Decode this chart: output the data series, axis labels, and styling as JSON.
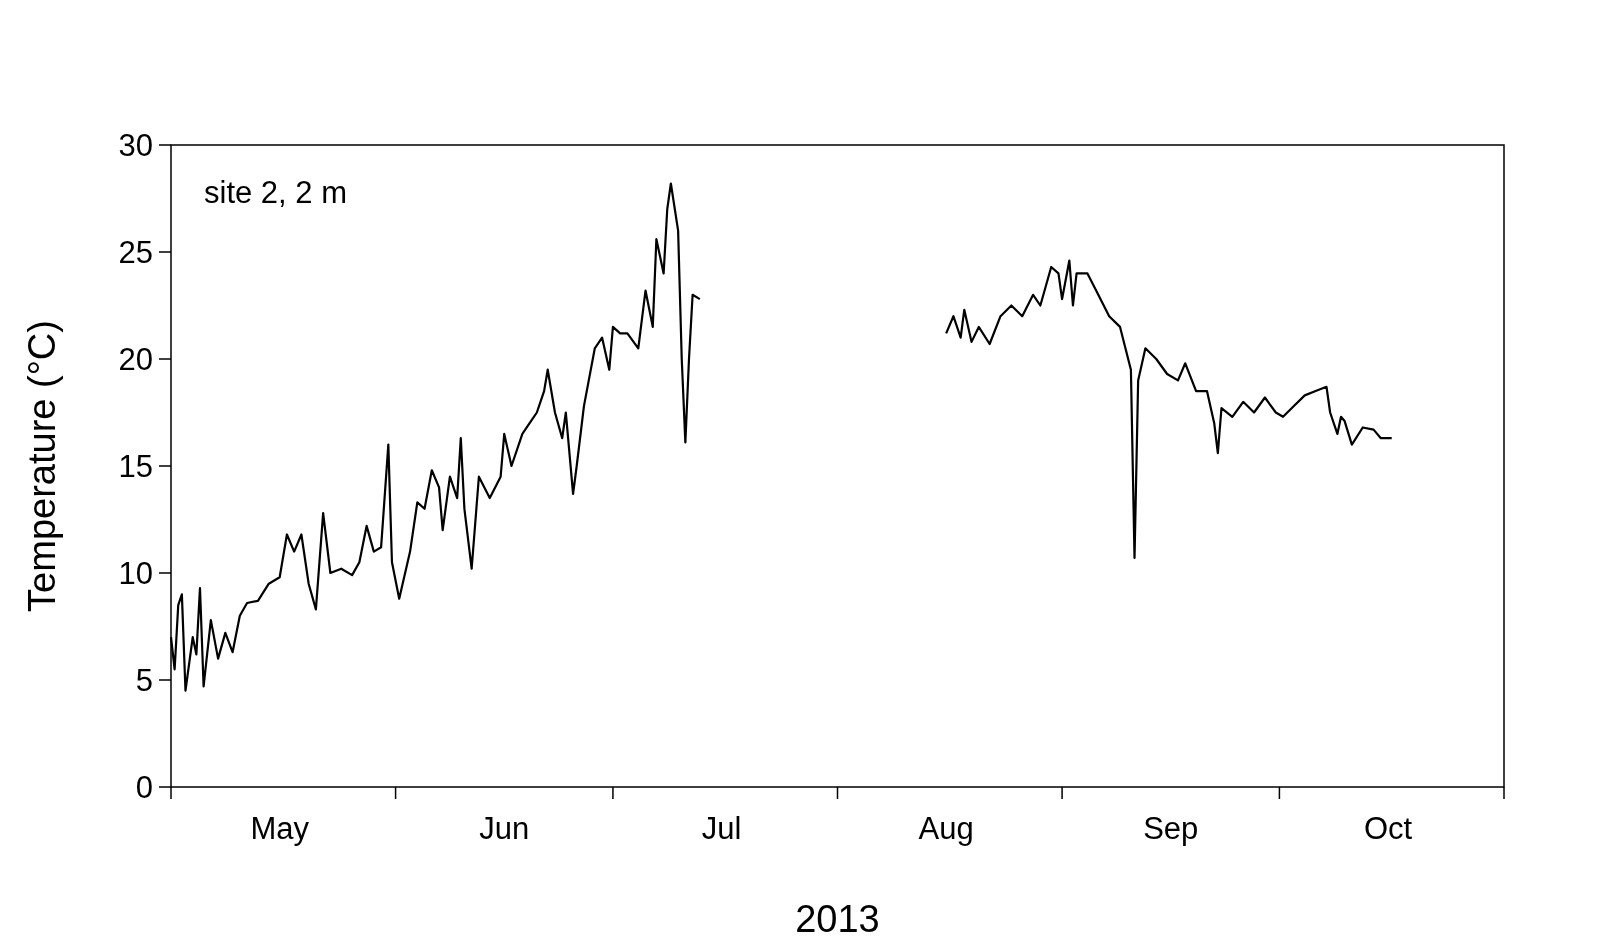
{
  "chart_data": {
    "type": "line",
    "xlabel": "2013",
    "ylabel": "Temperature (°C)",
    "annotations": [
      "site 2, 2 m"
    ],
    "x": [
      "2013-05-01T00:00",
      "2013-05-01T12:00",
      "2013-05-02T00:00",
      "2013-05-02T12:00",
      "2013-05-03T00:00",
      "2013-05-04T00:00",
      "2013-05-04T12:00",
      "2013-05-05T00:00",
      "2013-05-05T12:00",
      "2013-05-06T12:00",
      "2013-05-07T12:00",
      "2013-05-08T12:00",
      "2013-05-09T12:00",
      "2013-05-10T12:00",
      "2013-05-11T12:00",
      "2013-05-13T00:00",
      "2013-05-14T12:00",
      "2013-05-16T00:00",
      "2013-05-17T00:00",
      "2013-05-18T00:00",
      "2013-05-19T00:00",
      "2013-05-20T00:00",
      "2013-05-21T00:00",
      "2013-05-22T00:00",
      "2013-05-23T00:00",
      "2013-05-24T12:00",
      "2013-05-26T00:00",
      "2013-05-27T00:00",
      "2013-05-28T00:00",
      "2013-05-29T00:00",
      "2013-05-30T00:00",
      "2013-05-31T00:00",
      "2013-05-31T12:00",
      "2013-06-01T12:00",
      "2013-06-03T00:00",
      "2013-06-04T00:00",
      "2013-06-05T00:00",
      "2013-06-06T00:00",
      "2013-06-07T00:00",
      "2013-06-07T12:00",
      "2013-06-08T12:00",
      "2013-06-09T12:00",
      "2013-06-10T00:00",
      "2013-06-10T12:00",
      "2013-06-11T12:00",
      "2013-06-12T12:00",
      "2013-06-14T00:00",
      "2013-06-15T12:00",
      "2013-06-16T00:00",
      "2013-06-17T00:00",
      "2013-06-18T12:00",
      "2013-06-19T12:00",
      "2013-06-20T12:00",
      "2013-06-21T12:00",
      "2013-06-22T00:00",
      "2013-06-23T00:00",
      "2013-06-24T00:00",
      "2013-06-24T12:00",
      "2013-06-25T12:00",
      "2013-06-26T00:00",
      "2013-06-27T00:00",
      "2013-06-28T12:00",
      "2013-06-29T12:00",
      "2013-06-30T12:00",
      "2013-07-01T00:00",
      "2013-07-02T00:00",
      "2013-07-03T00:00",
      "2013-07-04T12:00",
      "2013-07-05T12:00",
      "2013-07-06T12:00",
      "2013-07-07T00:00",
      "2013-07-08T00:00",
      "2013-07-08T12:00",
      "2013-07-09T00:00",
      "2013-07-10T00:00",
      "2013-07-10T12:00",
      "2013-07-11T00:00",
      "2013-07-11T12:00",
      "2013-07-12T00:00",
      "2013-07-13T00:00",
      "2013-07-25T00:00",
      "2013-08-16T00:00",
      "2013-08-17T00:00",
      "2013-08-18T00:00",
      "2013-08-18T12:00",
      "2013-08-19T12:00",
      "2013-08-20T12:00",
      "2013-08-22T00:00",
      "2013-08-23T12:00",
      "2013-08-25T00:00",
      "2013-08-26T12:00",
      "2013-08-28T00:00",
      "2013-08-29T00:00",
      "2013-08-30T12:00",
      "2013-08-31T12:00",
      "2013-09-01T00:00",
      "2013-09-02T00:00",
      "2013-09-02T12:00",
      "2013-09-03T00:00",
      "2013-09-04T12:00",
      "2013-09-06T00:00",
      "2013-09-07T12:00",
      "2013-09-09T00:00",
      "2013-09-10T12:00",
      "2013-09-11T00:00",
      "2013-09-11T12:00",
      "2013-09-12T12:00",
      "2013-09-14T00:00",
      "2013-09-15T12:00",
      "2013-09-17T00:00",
      "2013-09-18T00:00",
      "2013-09-19T12:00",
      "2013-09-21T00:00",
      "2013-09-22T00:00",
      "2013-09-22T12:00",
      "2013-09-23T00:00",
      "2013-09-24T12:00",
      "2013-09-26T00:00",
      "2013-09-27T12:00",
      "2013-09-29T00:00",
      "2013-09-30T12:00",
      "2013-10-01T12:00",
      "2013-10-03T00:00",
      "2013-10-04T12:00",
      "2013-10-06T00:00",
      "2013-10-07T12:00",
      "2013-10-08T00:00",
      "2013-10-09T00:00",
      "2013-10-09T12:00",
      "2013-10-10T00:00",
      "2013-10-11T00:00",
      "2013-10-12T12:00",
      "2013-10-14T00:00",
      "2013-10-15T00:00",
      "2013-10-16T12:00"
    ],
    "series": [
      {
        "color": "#000000",
        "values": [
          7.0,
          5.5,
          8.5,
          9.0,
          4.5,
          7.0,
          6.2,
          9.3,
          4.7,
          7.8,
          6.0,
          7.2,
          6.3,
          8.0,
          8.6,
          8.7,
          9.5,
          9.8,
          11.8,
          11.0,
          11.8,
          9.5,
          8.3,
          12.8,
          10.0,
          10.2,
          9.9,
          10.5,
          12.2,
          11.0,
          11.2,
          16.0,
          10.5,
          8.8,
          11.0,
          13.3,
          13.0,
          14.8,
          14.0,
          12.0,
          14.5,
          13.5,
          16.3,
          13.0,
          10.2,
          14.5,
          13.5,
          14.5,
          16.5,
          15.0,
          16.5,
          17.0,
          17.5,
          18.5,
          19.5,
          17.5,
          16.3,
          17.5,
          13.7,
          15.0,
          17.8,
          20.5,
          21.0,
          19.5,
          21.5,
          21.2,
          21.2,
          20.5,
          23.2,
          21.5,
          25.6,
          24.0,
          27.0,
          28.2,
          26.0,
          20.0,
          16.1,
          20.0,
          23.0,
          22.8,
          null,
          21.2,
          22.0,
          21.0,
          22.3,
          20.8,
          21.5,
          20.7,
          22.0,
          22.5,
          22.0,
          23.0,
          22.5,
          24.3,
          24.0,
          22.8,
          24.6,
          22.5,
          24.0,
          24.0,
          23.0,
          22.0,
          21.5,
          19.5,
          10.7,
          19.0,
          20.5,
          20.0,
          19.3,
          19.0,
          19.8,
          18.5,
          18.5,
          17.0,
          15.6,
          17.7,
          17.3,
          18.0,
          17.5,
          18.2,
          17.5,
          17.3,
          17.8,
          18.3,
          18.5,
          18.7,
          17.5,
          16.5,
          17.3,
          17.1,
          16.0,
          16.8,
          16.7,
          16.3,
          16.3
        ]
      }
    ],
    "xlim": [
      "2013-05-01",
      "2013-11-01"
    ],
    "xticks": [
      {
        "value": "2013-05-01",
        "label": null
      },
      {
        "value": "2013-05-16",
        "label": "May"
      },
      {
        "value": "2013-06-01",
        "label": null
      },
      {
        "value": "2013-06-16",
        "label": "Jun"
      },
      {
        "value": "2013-07-01",
        "label": null
      },
      {
        "value": "2013-07-16",
        "label": "Jul"
      },
      {
        "value": "2013-08-01",
        "label": null
      },
      {
        "value": "2013-08-16",
        "label": "Aug"
      },
      {
        "value": "2013-09-01",
        "label": null
      },
      {
        "value": "2013-09-16",
        "label": "Sep"
      },
      {
        "value": "2013-10-01",
        "label": null
      },
      {
        "value": "2013-10-16",
        "label": "Oct"
      },
      {
        "value": "2013-11-01",
        "label": null
      }
    ],
    "ylim": [
      0,
      30
    ],
    "yticks": [
      0,
      5,
      10,
      15,
      20,
      25,
      30
    ],
    "grid": false,
    "marker": "none",
    "line_style": "solid"
  }
}
